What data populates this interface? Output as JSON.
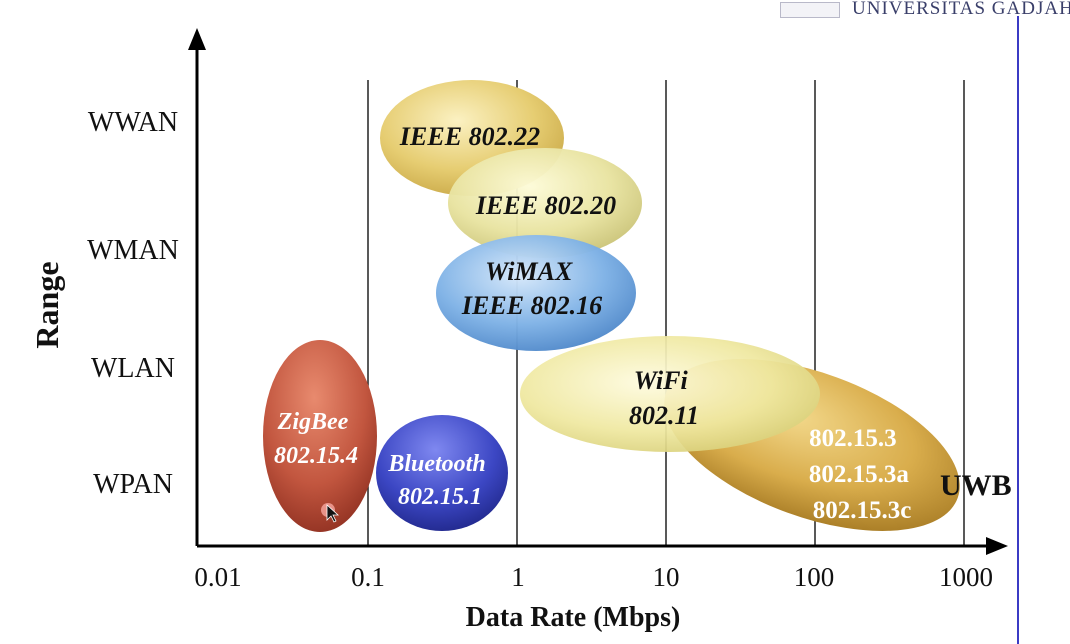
{
  "header": {
    "university": "UNIVERSITAS GADJAH I"
  },
  "axes": {
    "y_title": "Range",
    "x_title": "Data Rate (Mbps)",
    "x_ticks": [
      "0.01",
      "0.1",
      "1",
      "10",
      "100",
      "1000"
    ],
    "y_categories": [
      "WWAN",
      "WMAN",
      "WLAN",
      "WPAN"
    ]
  },
  "technologies": [
    {
      "id": "ieee80222",
      "lines": [
        "IEEE 802.22"
      ],
      "color": "#e7cf74"
    },
    {
      "id": "ieee80220",
      "lines": [
        "IEEE 802.20"
      ],
      "color": "#e7e39a"
    },
    {
      "id": "wimax",
      "lines": [
        "WiMAX",
        "IEEE 802.16"
      ],
      "color": "#7eb2e6"
    },
    {
      "id": "uwb-standards",
      "lines": [
        "802.15.3",
        "802.15.3a",
        "802.15.3c"
      ],
      "color": "#d9ad4c"
    },
    {
      "id": "wifi",
      "lines": [
        "WiFi",
        "802.11"
      ],
      "color": "#efe8a0"
    },
    {
      "id": "zigbee",
      "lines": [
        "ZigBee",
        "802.15.4"
      ],
      "color": "#c2563f"
    },
    {
      "id": "bluetooth",
      "lines": [
        "Bluetooth",
        "802.15.1"
      ],
      "color": "#3c47c4"
    }
  ],
  "uwb_label": "UWB",
  "colors": {
    "axis": "#000000",
    "gridline": "#222222",
    "accent_rule": "#3b3bc4"
  }
}
